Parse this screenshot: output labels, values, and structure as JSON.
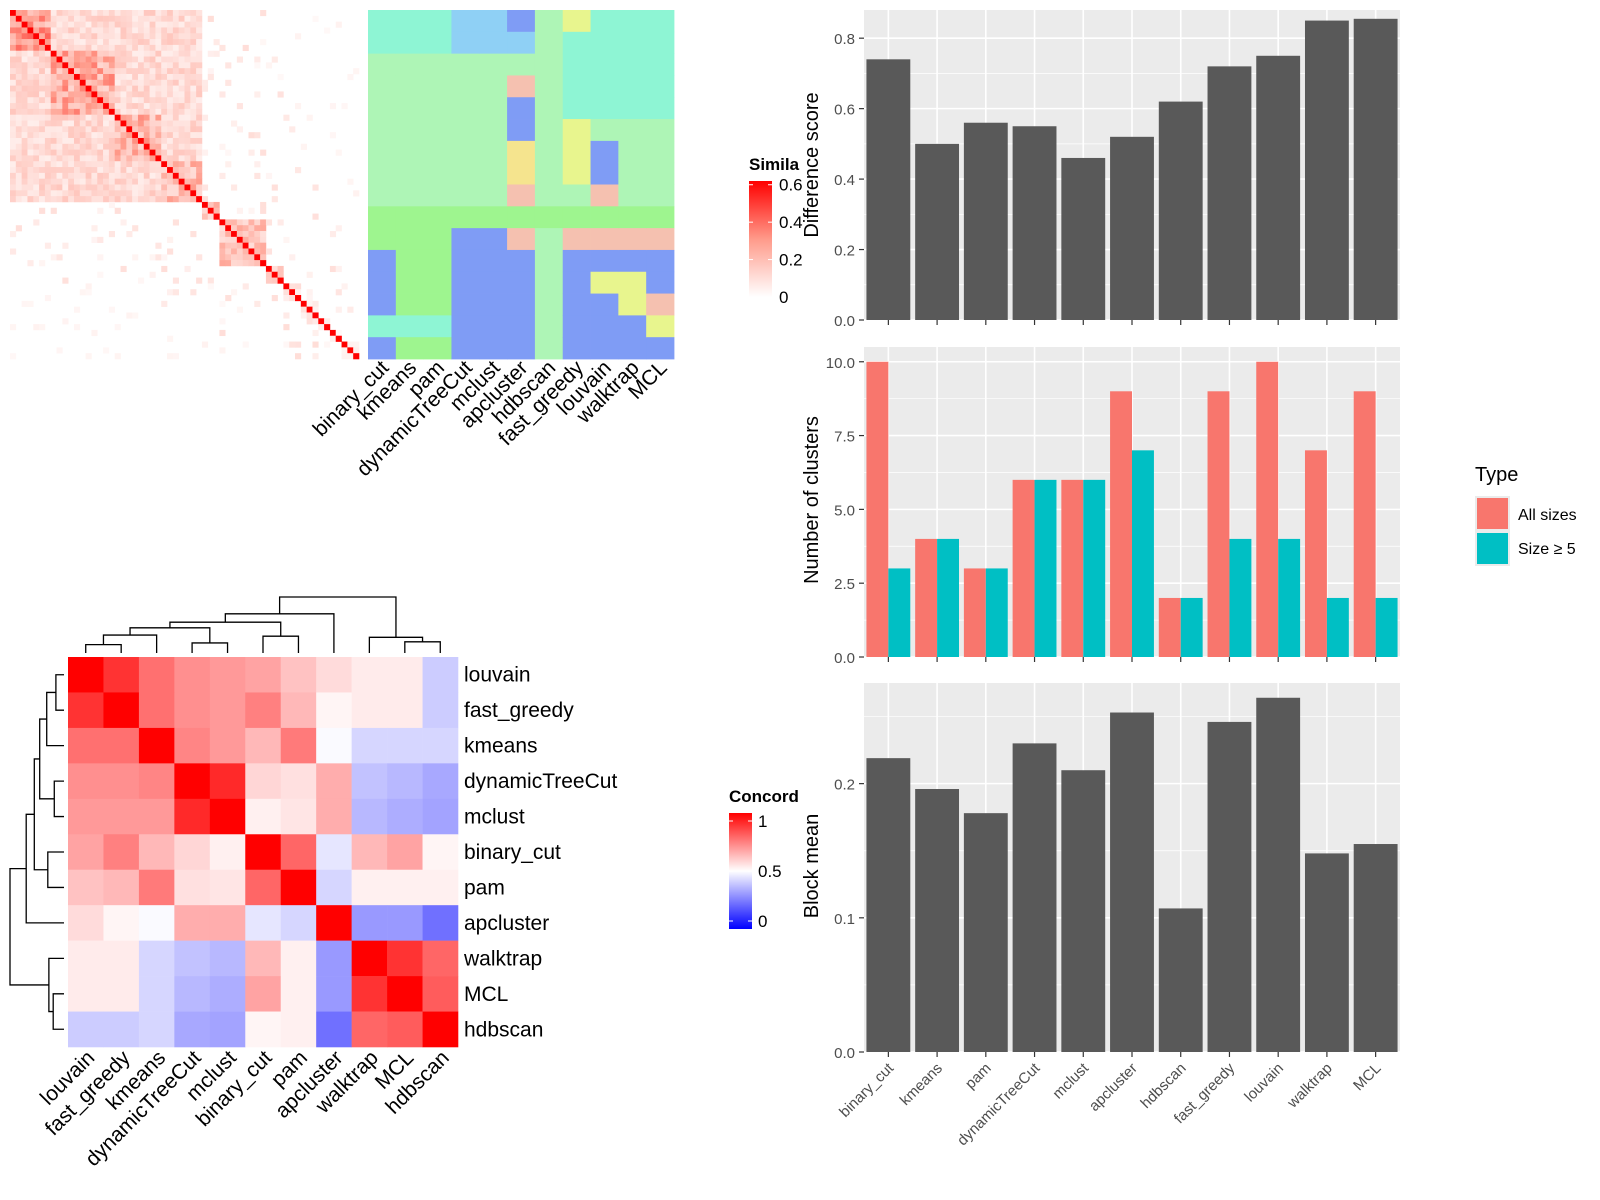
{
  "colors": {
    "panel_bg": "#EBEBEB",
    "grid": "#FFFFFF",
    "bar_dark": "#595959",
    "all_sizes": "#F8766D",
    "size_ge5": "#00BFC4",
    "axis_text": "#4D4D4D",
    "sim_high": "#FF0000",
    "sim_low": "#FFFFFF",
    "conc_high": "#FF0000",
    "conc_mid": "#FFFFFF",
    "conc_low": "#0000FF"
  },
  "similarity_heatmap": {
    "legend_title": "Simila",
    "legend_ticks": [
      "0.6",
      "0.4",
      "0.2",
      "0"
    ],
    "legend_values": [
      0.6,
      0.4,
      0.2,
      0
    ],
    "block_sizes": [
      7,
      11,
      8,
      7,
      3,
      8,
      3,
      3,
      3,
      2,
      2,
      3
    ],
    "block_strength": [
      0.35,
      0.3,
      0.28,
      0.25,
      0.22,
      0.22,
      0.15,
      0.1,
      0.08,
      0.06,
      0.05,
      0.05
    ],
    "methods": [
      "binary_cut",
      "kmeans",
      "pam",
      "dynamicTreeCut",
      "mclust",
      "apcluster",
      "hdbscan",
      "fast_greedy",
      "louvain",
      "walktrap",
      "MCL"
    ]
  },
  "annotation_palette": [
    "#8EF5D4",
    "#AEF5B6",
    "#9EF58F",
    "#7F9CF5",
    "#F5C1B0",
    "#E8F58E",
    "#8FD0F5",
    "#A5F5A5",
    "#F5E48E"
  ],
  "concordance_heatmap": {
    "legend_title": "Concord",
    "legend_ticks": [
      "1",
      "0.5",
      "0"
    ],
    "legend_values": [
      1,
      0.5,
      0
    ],
    "methods": [
      "louvain",
      "fast_greedy",
      "kmeans",
      "dynamicTreeCut",
      "mclust",
      "binary_cut",
      "pam",
      "apcluster",
      "walktrap",
      "MCL",
      "hdbscan"
    ],
    "matrix": [
      [
        1.0,
        0.9,
        0.78,
        0.72,
        0.7,
        0.68,
        0.62,
        0.57,
        0.54,
        0.54,
        0.4
      ],
      [
        0.9,
        1.0,
        0.78,
        0.72,
        0.7,
        0.75,
        0.64,
        0.52,
        0.54,
        0.54,
        0.4
      ],
      [
        0.78,
        0.78,
        1.0,
        0.74,
        0.7,
        0.64,
        0.76,
        0.49,
        0.42,
        0.42,
        0.42
      ],
      [
        0.72,
        0.72,
        0.74,
        1.0,
        0.92,
        0.58,
        0.56,
        0.66,
        0.38,
        0.36,
        0.33
      ],
      [
        0.7,
        0.7,
        0.7,
        0.92,
        1.0,
        0.53,
        0.55,
        0.66,
        0.36,
        0.34,
        0.32
      ],
      [
        0.68,
        0.75,
        0.64,
        0.58,
        0.53,
        1.0,
        0.8,
        0.45,
        0.64,
        0.68,
        0.52
      ],
      [
        0.62,
        0.64,
        0.76,
        0.56,
        0.55,
        0.8,
        1.0,
        0.42,
        0.53,
        0.53,
        0.53
      ],
      [
        0.57,
        0.52,
        0.49,
        0.66,
        0.66,
        0.45,
        0.42,
        1.0,
        0.3,
        0.3,
        0.22
      ],
      [
        0.54,
        0.54,
        0.42,
        0.38,
        0.36,
        0.64,
        0.53,
        0.3,
        1.0,
        0.9,
        0.8
      ],
      [
        0.54,
        0.54,
        0.42,
        0.36,
        0.34,
        0.68,
        0.53,
        0.3,
        0.9,
        1.0,
        0.82
      ],
      [
        0.4,
        0.4,
        0.42,
        0.33,
        0.32,
        0.52,
        0.53,
        0.22,
        0.8,
        0.82,
        1.0
      ]
    ]
  },
  "chart_data": [
    {
      "type": "bar",
      "categories": [
        "binary_cut",
        "kmeans",
        "pam",
        "dynamicTreeCut",
        "mclust",
        "apcluster",
        "hdbscan",
        "fast_greedy",
        "louvain",
        "walktrap",
        "MCL"
      ],
      "values": [
        0.74,
        0.5,
        0.56,
        0.55,
        0.46,
        0.52,
        0.62,
        0.72,
        0.75,
        0.85,
        0.855
      ],
      "xlabel": "",
      "ylabel": "Difference score",
      "ylim": [
        0,
        0.88
      ],
      "yticks": [
        "0.0",
        "0.2",
        "0.4",
        "0.6",
        "0.8"
      ],
      "grid": true
    },
    {
      "type": "bar",
      "categories": [
        "binary_cut",
        "kmeans",
        "pam",
        "dynamicTreeCut",
        "mclust",
        "apcluster",
        "hdbscan",
        "fast_greedy",
        "louvain",
        "walktrap",
        "MCL"
      ],
      "series": [
        {
          "name": "All sizes",
          "values": [
            10,
            4,
            3,
            6,
            6,
            9,
            2,
            9,
            10,
            7,
            9
          ]
        },
        {
          "name": "Size ≥ 5",
          "values": [
            3,
            4,
            3,
            6,
            6,
            7,
            2,
            4,
            4,
            2,
            2
          ]
        }
      ],
      "xlabel": "",
      "ylabel": "Number of clusters",
      "ylim": [
        0,
        10.5
      ],
      "yticks": [
        "0.0",
        "2.5",
        "5.0",
        "7.5",
        "10.0"
      ],
      "legend_title": "Type",
      "legend_position": "right",
      "grid": true
    },
    {
      "type": "bar",
      "categories": [
        "binary_cut",
        "kmeans",
        "pam",
        "dynamicTreeCut",
        "mclust",
        "apcluster",
        "hdbscan",
        "fast_greedy",
        "louvain",
        "walktrap",
        "MCL"
      ],
      "values": [
        0.219,
        0.196,
        0.178,
        0.23,
        0.21,
        0.253,
        0.107,
        0.246,
        0.264,
        0.148,
        0.155
      ],
      "xlabel": "",
      "ylabel": "Block mean",
      "ylim": [
        0,
        0.275
      ],
      "yticks": [
        "0.0",
        "0.1",
        "0.2"
      ],
      "grid": true
    }
  ]
}
